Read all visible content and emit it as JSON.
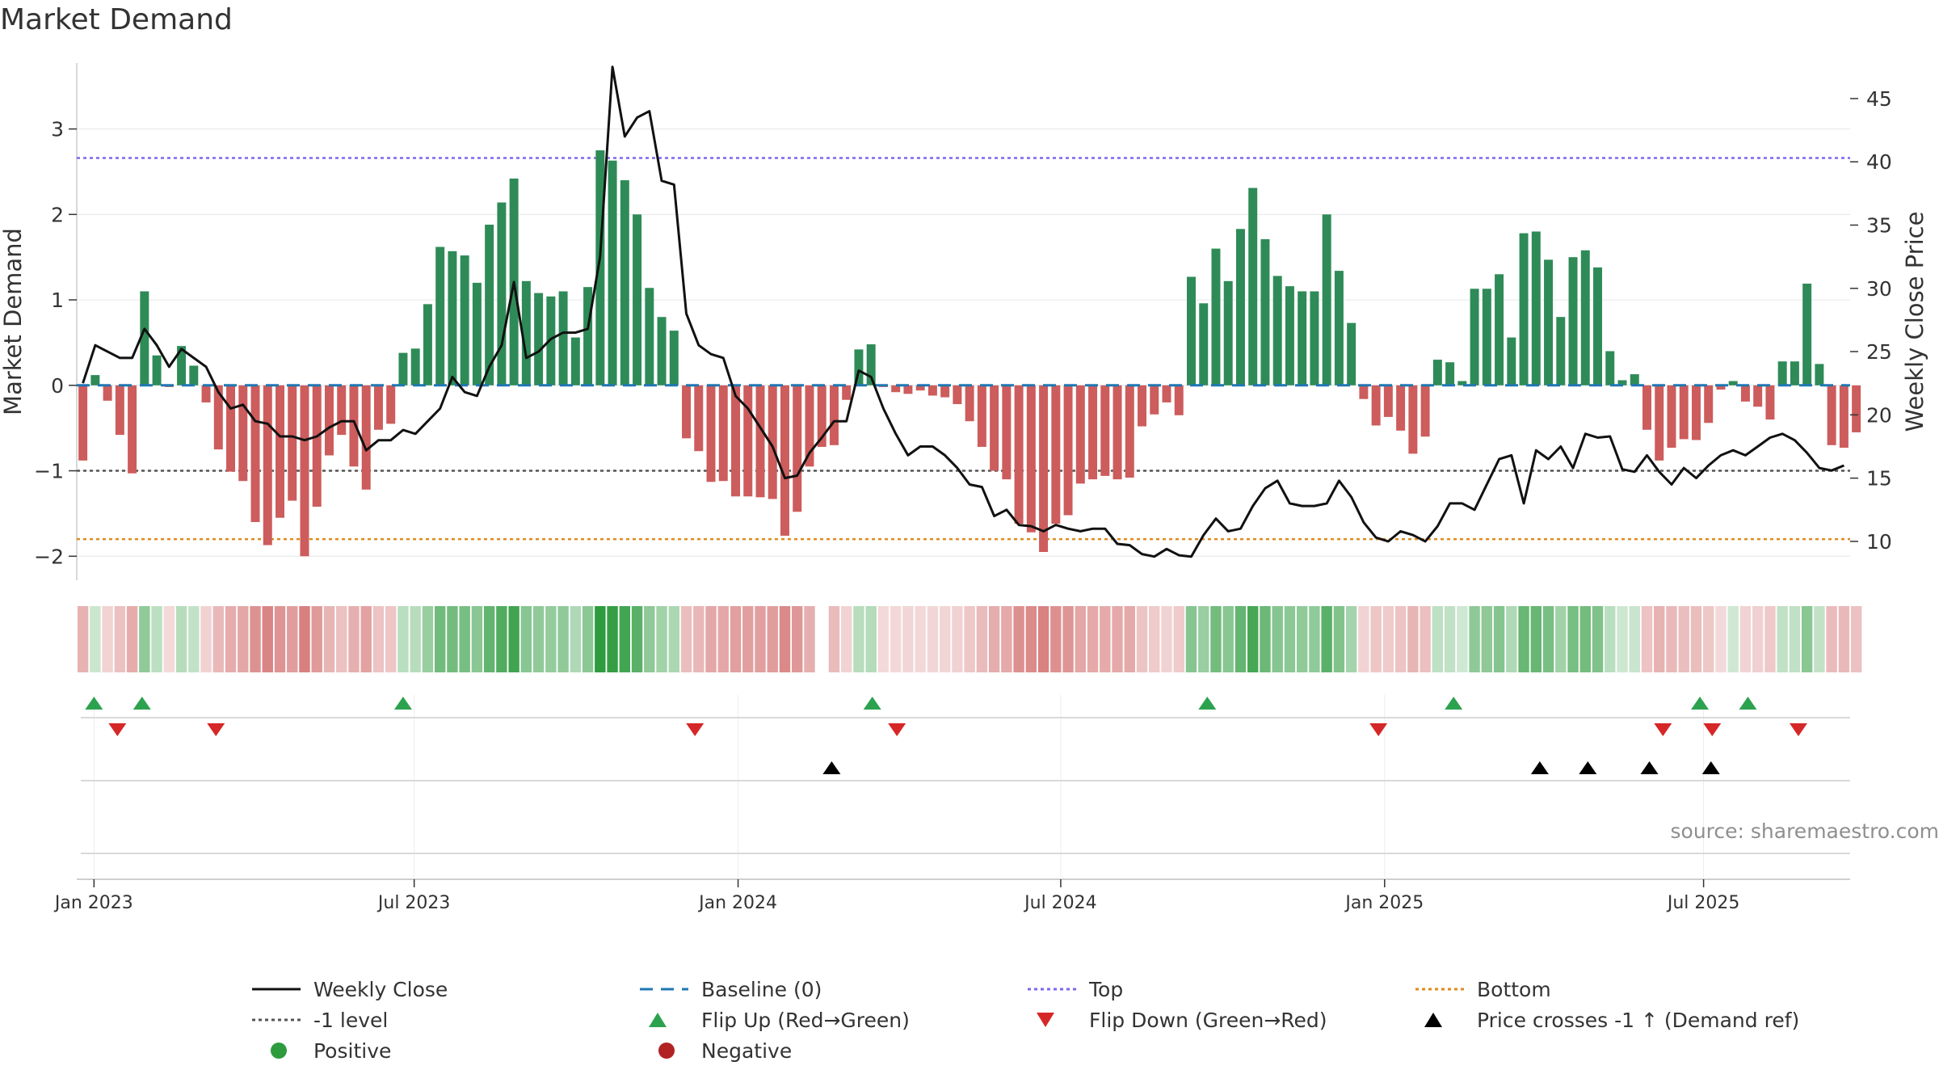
{
  "title": "Market Demand",
  "source": "source: sharemaestro.com",
  "colors": {
    "green": "#2e8b57",
    "red": "#cd5c5c",
    "price": "#111111",
    "baseline": "#1f77b4",
    "top": "#7b68ee",
    "minus1": "#555555",
    "bottom": "#e08a1e",
    "flip_up": "#2ca24f",
    "flip_down": "#d62728",
    "cross": "#000000",
    "positive": "#2e9b3f",
    "negative": "#b22222",
    "grid": "#e6e6e6",
    "axis": "#cccccc"
  },
  "legend": [
    {
      "key": "weekly_close",
      "label": "Weekly Close",
      "symbol": "line-solid"
    },
    {
      "key": "baseline",
      "label": "Baseline (0)",
      "symbol": "line-dash"
    },
    {
      "key": "top",
      "label": "Top",
      "symbol": "line-dot-top"
    },
    {
      "key": "bottom",
      "label": "Bottom",
      "symbol": "line-dot-bottom"
    },
    {
      "key": "minus1",
      "label": "-1 level",
      "symbol": "line-dot-gray"
    },
    {
      "key": "flip_up",
      "label": "Flip Up (Red→Green)",
      "symbol": "triangle-up-green"
    },
    {
      "key": "flip_down",
      "label": "Flip Down (Green→Red)",
      "symbol": "triangle-down-red"
    },
    {
      "key": "cross",
      "label": "Price crosses -1 ↑ (Demand ref)",
      "symbol": "triangle-up-black"
    },
    {
      "key": "positive",
      "label": "Positive",
      "symbol": "dot-green"
    },
    {
      "key": "negative",
      "label": "Negative",
      "symbol": "dot-red"
    }
  ],
  "chart_data": {
    "type": "bar",
    "title": "Market Demand",
    "ylabel": "Market Demand",
    "y2label": "Weekly Close Price",
    "ylim": [
      -2.3,
      3.8
    ],
    "y2lim": [
      6.8,
      48
    ],
    "yticks": [
      -2,
      -1,
      0,
      1,
      2,
      3
    ],
    "yticklabels": [
      "−2",
      "−1",
      "0",
      "1",
      "2",
      "3"
    ],
    "y2ticks": [
      10,
      15,
      20,
      25,
      30,
      35,
      40,
      45
    ],
    "week_range": [
      -0.5,
      143.5
    ],
    "xticks": [
      0.9,
      26.9,
      53.2,
      79.4,
      105.7,
      131.6
    ],
    "xticklabels": [
      "Jan 2023",
      "Jul 2023",
      "Jan 2024",
      "Jul 2024",
      "Jan 2025",
      "Jul 2025"
    ],
    "reference_lines": {
      "baseline": 0,
      "top": 2.66,
      "minus1": -1,
      "bottom": -1.8
    },
    "demand": [
      -0.88,
      0.12,
      -0.18,
      -0.58,
      -1.03,
      1.1,
      0.35,
      -0.02,
      0.46,
      0.23,
      -0.2,
      -0.75,
      -1.01,
      -1.12,
      -1.6,
      -1.87,
      -1.55,
      -1.35,
      -2.0,
      -1.42,
      -0.82,
      -0.58,
      -0.95,
      -1.22,
      -0.52,
      -0.45,
      0.38,
      0.43,
      0.95,
      1.62,
      1.57,
      1.52,
      1.2,
      1.88,
      2.14,
      2.42,
      1.22,
      1.08,
      1.04,
      1.1,
      0.56,
      1.15,
      2.75,
      2.63,
      2.4,
      2.0,
      1.14,
      0.8,
      0.64,
      -0.62,
      -0.77,
      -1.13,
      -1.12,
      -1.3,
      -1.3,
      -1.31,
      -1.33,
      -1.76,
      -1.48,
      -0.95,
      -0.72,
      -0.7,
      -0.17,
      0.42,
      0.48,
      -0.02,
      -0.08,
      -0.1,
      -0.06,
      -0.12,
      -0.14,
      -0.22,
      -0.42,
      -0.72,
      -1.0,
      -1.1,
      -1.62,
      -1.72,
      -1.95,
      -1.62,
      -1.52,
      -1.15,
      -1.1,
      -1.06,
      -1.1,
      -1.08,
      -0.48,
      -0.34,
      -0.2,
      -0.35,
      1.27,
      0.96,
      1.6,
      1.22,
      1.83,
      2.31,
      1.71,
      1.28,
      1.16,
      1.1,
      1.1,
      2.0,
      1.34,
      0.73,
      -0.16,
      -0.47,
      -0.37,
      -0.53,
      -0.8,
      -0.6,
      0.3,
      0.27,
      0.05,
      1.13,
      1.13,
      1.3,
      0.56,
      1.78,
      1.8,
      1.47,
      0.8,
      1.5,
      1.58,
      1.38,
      0.4,
      0.06,
      0.13,
      -0.52,
      -0.88,
      -0.73,
      -0.63,
      -0.64,
      -0.44,
      -0.05,
      0.05,
      -0.19,
      -0.25,
      -0.4,
      0.28,
      0.28,
      1.19,
      0.25,
      -0.7,
      -0.73,
      -0.55
    ],
    "price": [
      22.5,
      25.5,
      25.0,
      24.5,
      24.5,
      26.8,
      25.5,
      23.8,
      25.2,
      24.5,
      23.8,
      21.8,
      20.5,
      20.8,
      19.5,
      19.3,
      18.3,
      18.3,
      18.0,
      18.3,
      19.0,
      19.5,
      19.5,
      17.2,
      18.0,
      18.0,
      18.8,
      18.5,
      19.5,
      20.5,
      23.0,
      21.8,
      21.5,
      23.8,
      25.5,
      30.5,
      24.5,
      25.0,
      26.0,
      26.5,
      26.5,
      26.8,
      32.5,
      47.5,
      42.0,
      43.5,
      44.0,
      38.5,
      38.2,
      28.0,
      25.5,
      24.8,
      24.5,
      21.5,
      20.5,
      19.0,
      17.5,
      15.0,
      15.2,
      17.0,
      18.2,
      19.5,
      19.5,
      23.5,
      23.0,
      20.5,
      18.5,
      16.8,
      17.5,
      17.5,
      16.8,
      15.8,
      14.5,
      14.3,
      12.0,
      12.5,
      11.3,
      11.2,
      10.8,
      11.3,
      11.0,
      10.8,
      11.0,
      11.0,
      9.8,
      9.7,
      9.0,
      8.8,
      9.4,
      8.9,
      8.8,
      10.5,
      11.8,
      10.8,
      11.0,
      12.8,
      14.2,
      14.8,
      13.0,
      12.8,
      12.8,
      13.0,
      14.8,
      13.5,
      11.5,
      10.3,
      10.0,
      10.8,
      10.5,
      10.0,
      11.2,
      13.0,
      13.0,
      12.5,
      14.5,
      16.5,
      16.8,
      13.0,
      17.2,
      16.5,
      17.5,
      15.8,
      18.5,
      18.2,
      18.3,
      15.7,
      15.5,
      16.8,
      15.5,
      14.5,
      15.8,
      15.0,
      16.0,
      16.8,
      17.2,
      16.8,
      17.5,
      18.2,
      18.5,
      18.0,
      17.0,
      15.8,
      15.6,
      16.0
    ],
    "gap_weeks": [
      60
    ],
    "flip_up_weeks": [
      0.9,
      4.8,
      26.0,
      64.1,
      91.3,
      111.3,
      131.3,
      135.2
    ],
    "flip_down_weeks": [
      2.8,
      10.8,
      49.7,
      66.1,
      105.2,
      128.3,
      132.3,
      139.3
    ],
    "price_cross_weeks": [
      60.8,
      118.3,
      122.2,
      127.2,
      132.2
    ]
  }
}
